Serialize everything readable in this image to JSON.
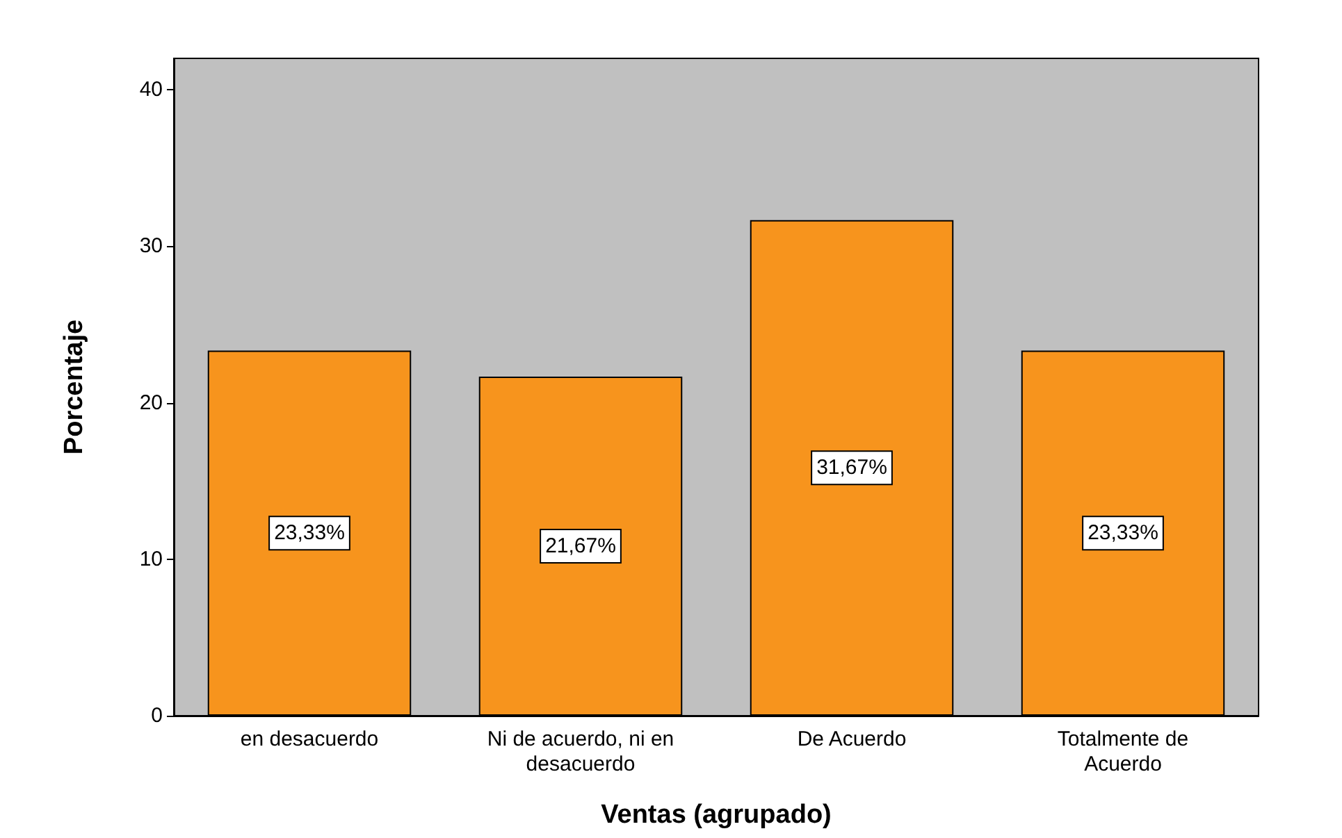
{
  "chart_data": {
    "type": "bar",
    "xlabel": "Ventas (agrupado)",
    "ylabel": "Porcentaje",
    "categories": [
      "en desacuerdo",
      "Ni de acuerdo, ni en\ndesacuerdo",
      "De Acuerdo",
      "Totalmente de\nAcuerdo"
    ],
    "values": [
      23.33,
      21.67,
      31.67,
      23.33
    ],
    "value_labels": [
      "23,33%",
      "21,67%",
      "31,67%",
      "23,33%"
    ],
    "color": "#f7941d",
    "ylim": [
      0,
      42
    ],
    "yticks": [
      0,
      10,
      20,
      30,
      40
    ],
    "grid": false
  }
}
